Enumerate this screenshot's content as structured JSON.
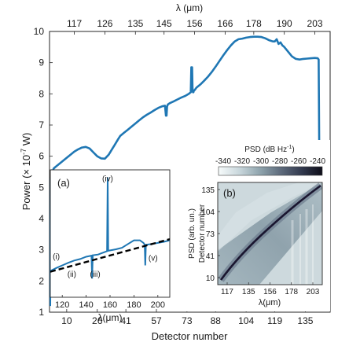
{
  "chart_data": [
    {
      "id": "main",
      "type": "line",
      "xlabel": "Detector number",
      "ylabel_parts": [
        "Power (",
        "×",
        " 10",
        "-7",
        " W)"
      ],
      "top_axis_label": "λ (μm)",
      "xlim": [
        1,
        148
      ],
      "ylim": [
        1,
        10
      ],
      "xticks": [
        10,
        26,
        41,
        57,
        73,
        88,
        104,
        119,
        135
      ],
      "yticks": [
        1,
        2,
        3,
        4,
        5,
        6,
        7,
        8,
        9,
        10
      ],
      "top_ticks": [
        {
          "x": 14,
          "label": "117"
        },
        {
          "x": 30,
          "label": "126"
        },
        {
          "x": 46,
          "label": "135"
        },
        {
          "x": 61,
          "label": "145"
        },
        {
          "x": 77,
          "label": "156"
        },
        {
          "x": 93,
          "label": "166"
        },
        {
          "x": 108,
          "label": "178"
        },
        {
          "x": 124,
          "label": "190"
        },
        {
          "x": 140,
          "label": "203"
        }
      ],
      "series": [
        {
          "color": "#1f77b4",
          "x": [
            1.3,
            1.7,
            1.9,
            2.2,
            2.6,
            3.1,
            4,
            6,
            8,
            10,
            12,
            14,
            16,
            18,
            20,
            22,
            24,
            26,
            28,
            30,
            32,
            34,
            35,
            36,
            37,
            38,
            40,
            42,
            44,
            46,
            48,
            50,
            52,
            54,
            56,
            58,
            60,
            61.5,
            62,
            62.3,
            62.6,
            63,
            64,
            66,
            68,
            70,
            72,
            74,
            75,
            75.3,
            75.5,
            75.7,
            75.9,
            76.1,
            76.4,
            76.6,
            77,
            78,
            80,
            82,
            84,
            86,
            88,
            90,
            92,
            94,
            96,
            98,
            100,
            102,
            104,
            106,
            108,
            110,
            112,
            114,
            116,
            118,
            119,
            120,
            121,
            122,
            123,
            124,
            126,
            128,
            130,
            132,
            134,
            136,
            138,
            140,
            141.5,
            142,
            142.3,
            142.6,
            143.2,
            143.6,
            144
          ],
          "y": [
            1.2,
            5.3,
            5.05,
            5.55,
            5.3,
            5.6,
            5.65,
            5.75,
            5.85,
            5.95,
            6.05,
            6.15,
            6.22,
            6.28,
            6.3,
            6.25,
            6.12,
            6.0,
            5.93,
            5.92,
            6.05,
            6.25,
            6.35,
            6.45,
            6.55,
            6.65,
            6.75,
            6.85,
            6.95,
            7.05,
            7.15,
            7.25,
            7.33,
            7.4,
            7.48,
            7.55,
            7.6,
            7.62,
            7.3,
            7.3,
            7.6,
            7.66,
            7.7,
            7.76,
            7.82,
            7.88,
            7.93,
            8.0,
            8.05,
            8.85,
            8.3,
            8.85,
            8.2,
            8.05,
            8.05,
            8.1,
            8.12,
            8.2,
            8.3,
            8.42,
            8.55,
            8.7,
            8.87,
            9.05,
            9.23,
            9.4,
            9.55,
            9.68,
            9.75,
            9.77,
            9.8,
            9.82,
            9.83,
            9.83,
            9.82,
            9.78,
            9.72,
            9.68,
            9.68,
            9.75,
            9.6,
            9.65,
            9.55,
            9.5,
            9.35,
            9.2,
            9.12,
            9.1,
            9.12,
            9.13,
            9.14,
            9.15,
            9.14,
            9.1,
            6.0,
            3.5,
            3.0,
            2.75,
            2.0
          ]
        }
      ]
    },
    {
      "id": "inset_a",
      "type": "line",
      "panel_label": "(a)",
      "xlabel": "λ(μm)",
      "xlim": [
        110,
        210
      ],
      "ylim": [
        1.8,
        5.2
      ],
      "xticks": [
        120,
        140,
        160,
        180,
        200
      ],
      "series": [
        {
          "style": "solid",
          "color": "#1f77b4",
          "x": [
            110,
            115,
            120,
            125,
            130,
            135,
            140,
            144.5,
            145,
            145.5,
            150,
            155,
            157.5,
            158,
            158.5,
            165,
            170,
            175,
            180,
            185,
            188,
            189,
            189.5,
            190,
            195,
            200,
            205,
            210
          ],
          "y": [
            2.5,
            2.58,
            2.65,
            2.72,
            2.78,
            2.82,
            2.88,
            2.91,
            2.3,
            2.92,
            2.94,
            3.0,
            3.03,
            5.0,
            3.04,
            3.08,
            3.12,
            3.22,
            3.32,
            3.32,
            3.25,
            3.2,
            2.65,
            3.2,
            3.22,
            3.25,
            3.28,
            3.32
          ]
        },
        {
          "style": "dashed",
          "color": "#000000",
          "x": [
            110,
            210
          ],
          "y": [
            2.48,
            3.35
          ]
        }
      ],
      "annotations": [
        {
          "text": "(i)",
          "x": 115,
          "y": 2.82
        },
        {
          "text": "(ii)",
          "x": 128,
          "y": 2.35
        },
        {
          "text": "(iii)",
          "x": 147.5,
          "y": 2.35
        },
        {
          "text": "(iv)",
          "x": 158,
          "y": 4.9
        },
        {
          "text": "(v)",
          "x": 196,
          "y": 2.78
        }
      ]
    },
    {
      "id": "inset_b",
      "type": "heatmap",
      "panel_label": "(b)",
      "xlabel": "λ(μm)",
      "ylabel": "Detector number",
      "ylabel_prefix": "PSD (arb. un.)",
      "xticks": [
        "117",
        "135",
        "156",
        "178",
        "203"
      ],
      "yticks": [
        "135",
        "104",
        "73",
        "41",
        "10"
      ],
      "colorbar": {
        "title_parts": [
          "PSD (dB Hz",
          "-1",
          ")"
        ],
        "ticks": [
          "-340",
          "-320",
          "-300",
          "-280",
          "-260",
          "-240"
        ],
        "colors": [
          "#f7fbfb",
          "#c9d7dc",
          "#8fa4ad",
          "#5e6b7c",
          "#333a4f",
          "#0d0d18"
        ]
      },
      "colors": {
        "background": "#cdd9dd",
        "band": "#93a6b0",
        "ridge": "#1a1630",
        "halo": "#5e6e82"
      }
    }
  ]
}
